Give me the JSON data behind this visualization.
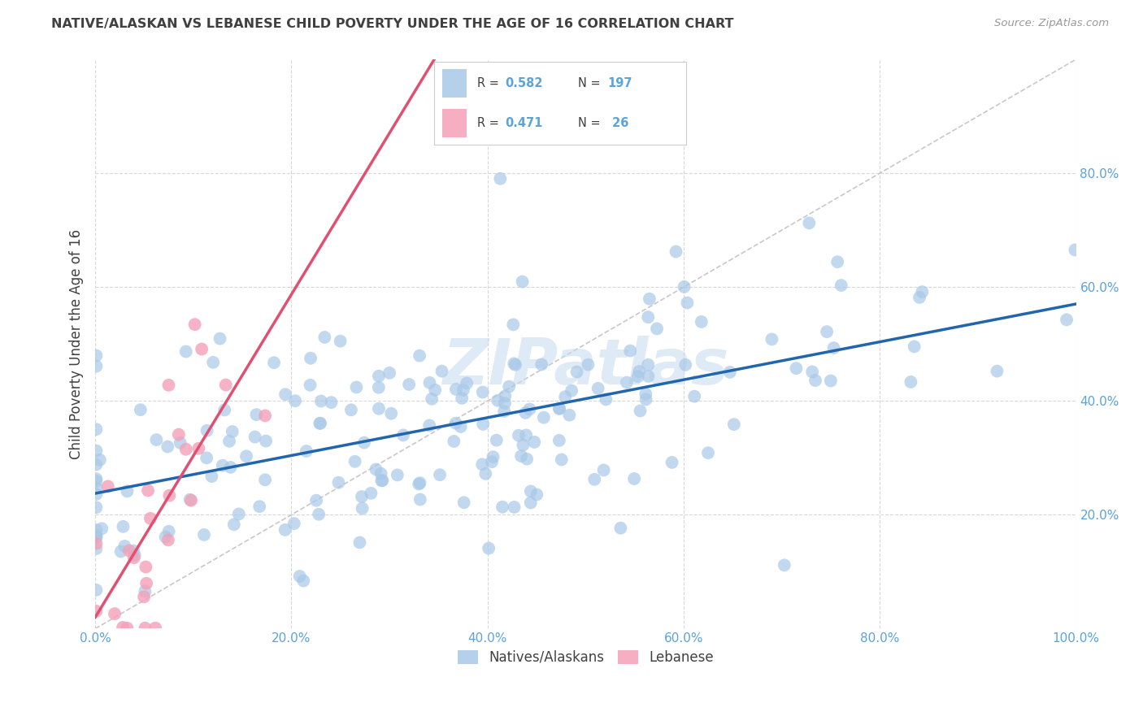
{
  "title": "NATIVE/ALASKAN VS LEBANESE CHILD POVERTY UNDER THE AGE OF 16 CORRELATION CHART",
  "source": "Source: ZipAtlas.com",
  "ylabel": "Child Poverty Under the Age of 16",
  "blue_R": 0.582,
  "blue_N": 197,
  "pink_R": 0.471,
  "pink_N": 26,
  "blue_color": "#a8c8e8",
  "pink_color": "#f4a0b8",
  "blue_line_color": "#2166ac",
  "pink_line_color": "#e05070",
  "diagonal_color": "#c8c8c8",
  "background_color": "#ffffff",
  "grid_color": "#d8d8d8",
  "title_color": "#404040",
  "axis_label_color": "#5ba3d9",
  "legend_label_blue": "Natives/Alaskans",
  "legend_label_pink": "Lebanese",
  "xlim": [
    0.0,
    1.0
  ],
  "ylim": [
    0.0,
    1.0
  ],
  "xticks": [
    0.0,
    0.2,
    0.4,
    0.6,
    0.8,
    1.0
  ],
  "yticks": [
    0.2,
    0.4,
    0.6,
    0.8
  ],
  "xticklabels": [
    "0.0%",
    "20.0%",
    "40.0%",
    "60.0%",
    "80.0%",
    "100.0%"
  ],
  "yticklabels": [
    "20.0%",
    "40.0%",
    "60.0%",
    "80.0%"
  ],
  "seed_blue": 42,
  "seed_pink": 99,
  "watermark": "ZIPatlas"
}
